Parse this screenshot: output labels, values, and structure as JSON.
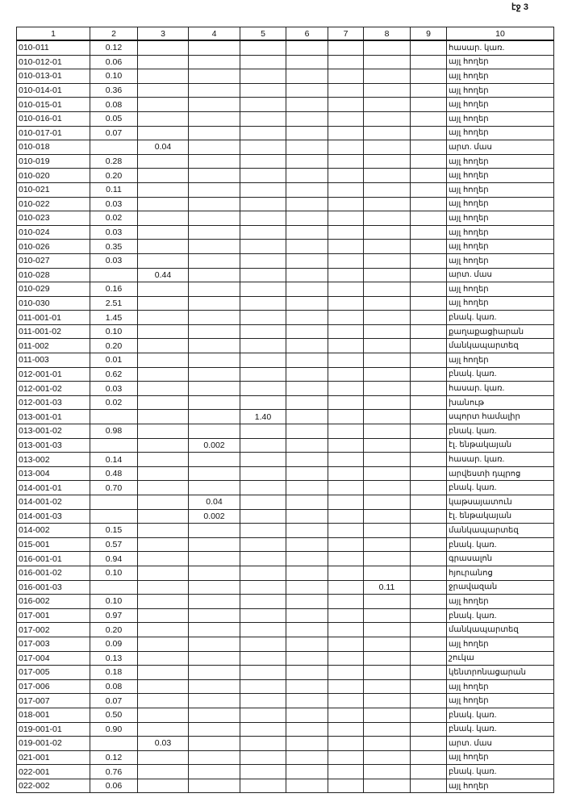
{
  "page_label": "էջ 3",
  "headers": [
    "1",
    "2",
    "3",
    "4",
    "5",
    "6",
    "7",
    "8",
    "9",
    "10"
  ],
  "rows": [
    [
      "010-011",
      "0.12",
      "",
      "",
      "",
      "",
      "",
      "",
      "",
      "հասար. կառ."
    ],
    [
      "010-012-01",
      "0.06",
      "",
      "",
      "",
      "",
      "",
      "",
      "",
      "այլ հողեր"
    ],
    [
      "010-013-01",
      "0.10",
      "",
      "",
      "",
      "",
      "",
      "",
      "",
      "այլ հողեր"
    ],
    [
      "010-014-01",
      "0.36",
      "",
      "",
      "",
      "",
      "",
      "",
      "",
      "այլ հողեր"
    ],
    [
      "010-015-01",
      "0.08",
      "",
      "",
      "",
      "",
      "",
      "",
      "",
      "այլ հողեր"
    ],
    [
      "010-016-01",
      "0.05",
      "",
      "",
      "",
      "",
      "",
      "",
      "",
      "այլ հողեր"
    ],
    [
      "010-017-01",
      "0.07",
      "",
      "",
      "",
      "",
      "",
      "",
      "",
      "այլ հողեր"
    ],
    [
      "010-018",
      "",
      "0.04",
      "",
      "",
      "",
      "",
      "",
      "",
      "արտ. մաս"
    ],
    [
      "010-019",
      "0.28",
      "",
      "",
      "",
      "",
      "",
      "",
      "",
      "այլ հողեր"
    ],
    [
      "010-020",
      "0.20",
      "",
      "",
      "",
      "",
      "",
      "",
      "",
      "այլ հողեր"
    ],
    [
      "010-021",
      "0.11",
      "",
      "",
      "",
      "",
      "",
      "",
      "",
      "այլ հողեր"
    ],
    [
      "010-022",
      "0.03",
      "",
      "",
      "",
      "",
      "",
      "",
      "",
      "այլ հողեր"
    ],
    [
      "010-023",
      "0.02",
      "",
      "",
      "",
      "",
      "",
      "",
      "",
      "այլ հողեր"
    ],
    [
      "010-024",
      "0.03",
      "",
      "",
      "",
      "",
      "",
      "",
      "",
      "այլ հողեր"
    ],
    [
      "010-026",
      "0.35",
      "",
      "",
      "",
      "",
      "",
      "",
      "",
      "այլ հողեր"
    ],
    [
      "010-027",
      "0.03",
      "",
      "",
      "",
      "",
      "",
      "",
      "",
      "այլ հողեր"
    ],
    [
      "010-028",
      "",
      "0.44",
      "",
      "",
      "",
      "",
      "",
      "",
      "արտ. մաս"
    ],
    [
      "010-029",
      "0.16",
      "",
      "",
      "",
      "",
      "",
      "",
      "",
      "այլ հողեր"
    ],
    [
      "010-030",
      "2.51",
      "",
      "",
      "",
      "",
      "",
      "",
      "",
      "այլ հողեր"
    ],
    [
      "011-001-01",
      "1.45",
      "",
      "",
      "",
      "",
      "",
      "",
      "",
      "բնակ. կառ."
    ],
    [
      "011-001-02",
      "0.10",
      "",
      "",
      "",
      "",
      "",
      "",
      "",
      "քաղաքացիարան"
    ],
    [
      "011-002",
      "0.20",
      "",
      "",
      "",
      "",
      "",
      "",
      "",
      "մանկապարտեզ"
    ],
    [
      "011-003",
      "0.01",
      "",
      "",
      "",
      "",
      "",
      "",
      "",
      "այլ հողեր"
    ],
    [
      "012-001-01",
      "0.62",
      "",
      "",
      "",
      "",
      "",
      "",
      "",
      "բնակ. կառ."
    ],
    [
      "012-001-02",
      "0.03",
      "",
      "",
      "",
      "",
      "",
      "",
      "",
      "հասար. կառ."
    ],
    [
      "012-001-03",
      "0.02",
      "",
      "",
      "",
      "",
      "",
      "",
      "",
      "խանութ"
    ],
    [
      "013-001-01",
      "",
      "",
      "",
      "1.40",
      "",
      "",
      "",
      "",
      "սպորտ համալիր"
    ],
    [
      "013-001-02",
      "0.98",
      "",
      "",
      "",
      "",
      "",
      "",
      "",
      "բնակ. կառ."
    ],
    [
      "013-001-03",
      "",
      "",
      "0.002",
      "",
      "",
      "",
      "",
      "",
      "էլ. ենթակայան"
    ],
    [
      "013-002",
      "0.14",
      "",
      "",
      "",
      "",
      "",
      "",
      "",
      "հասար. կառ."
    ],
    [
      "013-004",
      "0.48",
      "",
      "",
      "",
      "",
      "",
      "",
      "",
      "արվեստի դպրոց"
    ],
    [
      "014-001-01",
      "0.70",
      "",
      "",
      "",
      "",
      "",
      "",
      "",
      "բնակ. կառ."
    ],
    [
      "014-001-02",
      "",
      "",
      "0.04",
      "",
      "",
      "",
      "",
      "",
      "կաթսայատուն"
    ],
    [
      "014-001-03",
      "",
      "",
      "0.002",
      "",
      "",
      "",
      "",
      "",
      "էլ. ենթակայան"
    ],
    [
      "014-002",
      "0.15",
      "",
      "",
      "",
      "",
      "",
      "",
      "",
      "մանկապարտեզ"
    ],
    [
      "015-001",
      "0.57",
      "",
      "",
      "",
      "",
      "",
      "",
      "",
      "բնակ. կառ."
    ],
    [
      "016-001-01",
      "0.94",
      "",
      "",
      "",
      "",
      "",
      "",
      "",
      "գրասալոն"
    ],
    [
      "016-001-02",
      "0.10",
      "",
      "",
      "",
      "",
      "",
      "",
      "",
      "հյուրանոց"
    ],
    [
      "016-001-03",
      "",
      "",
      "",
      "",
      "",
      "",
      "0.11",
      "",
      "ջրավազան"
    ],
    [
      "016-002",
      "0.10",
      "",
      "",
      "",
      "",
      "",
      "",
      "",
      "այլ հողեր"
    ],
    [
      "017-001",
      "0.97",
      "",
      "",
      "",
      "",
      "",
      "",
      "",
      "բնակ. կառ."
    ],
    [
      "017-002",
      "0.20",
      "",
      "",
      "",
      "",
      "",
      "",
      "",
      "մանկապարտեզ"
    ],
    [
      "017-003",
      "0.09",
      "",
      "",
      "",
      "",
      "",
      "",
      "",
      "այլ հողեր"
    ],
    [
      "017-004",
      "0.13",
      "",
      "",
      "",
      "",
      "",
      "",
      "",
      "շուկա"
    ],
    [
      "017-005",
      "0.18",
      "",
      "",
      "",
      "",
      "",
      "",
      "",
      "կենտրոնացարան"
    ],
    [
      "017-006",
      "0.08",
      "",
      "",
      "",
      "",
      "",
      "",
      "",
      "այլ հողեր"
    ],
    [
      "017-007",
      "0.07",
      "",
      "",
      "",
      "",
      "",
      "",
      "",
      "այլ հողեր"
    ],
    [
      "018-001",
      "0.50",
      "",
      "",
      "",
      "",
      "",
      "",
      "",
      "բնակ. կառ."
    ],
    [
      "019-001-01",
      "0.90",
      "",
      "",
      "",
      "",
      "",
      "",
      "",
      "բնակ. կառ."
    ],
    [
      "019-001-02",
      "",
      "0.03",
      "",
      "",
      "",
      "",
      "",
      "",
      "արտ. մաս"
    ],
    [
      "021-001",
      "0.12",
      "",
      "",
      "",
      "",
      "",
      "",
      "",
      "այլ հողեր"
    ],
    [
      "022-001",
      "0.76",
      "",
      "",
      "",
      "",
      "",
      "",
      "",
      "բնակ. կառ."
    ],
    [
      "022-002",
      "0.06",
      "",
      "",
      "",
      "",
      "",
      "",
      "",
      "այլ հողեր"
    ]
  ]
}
